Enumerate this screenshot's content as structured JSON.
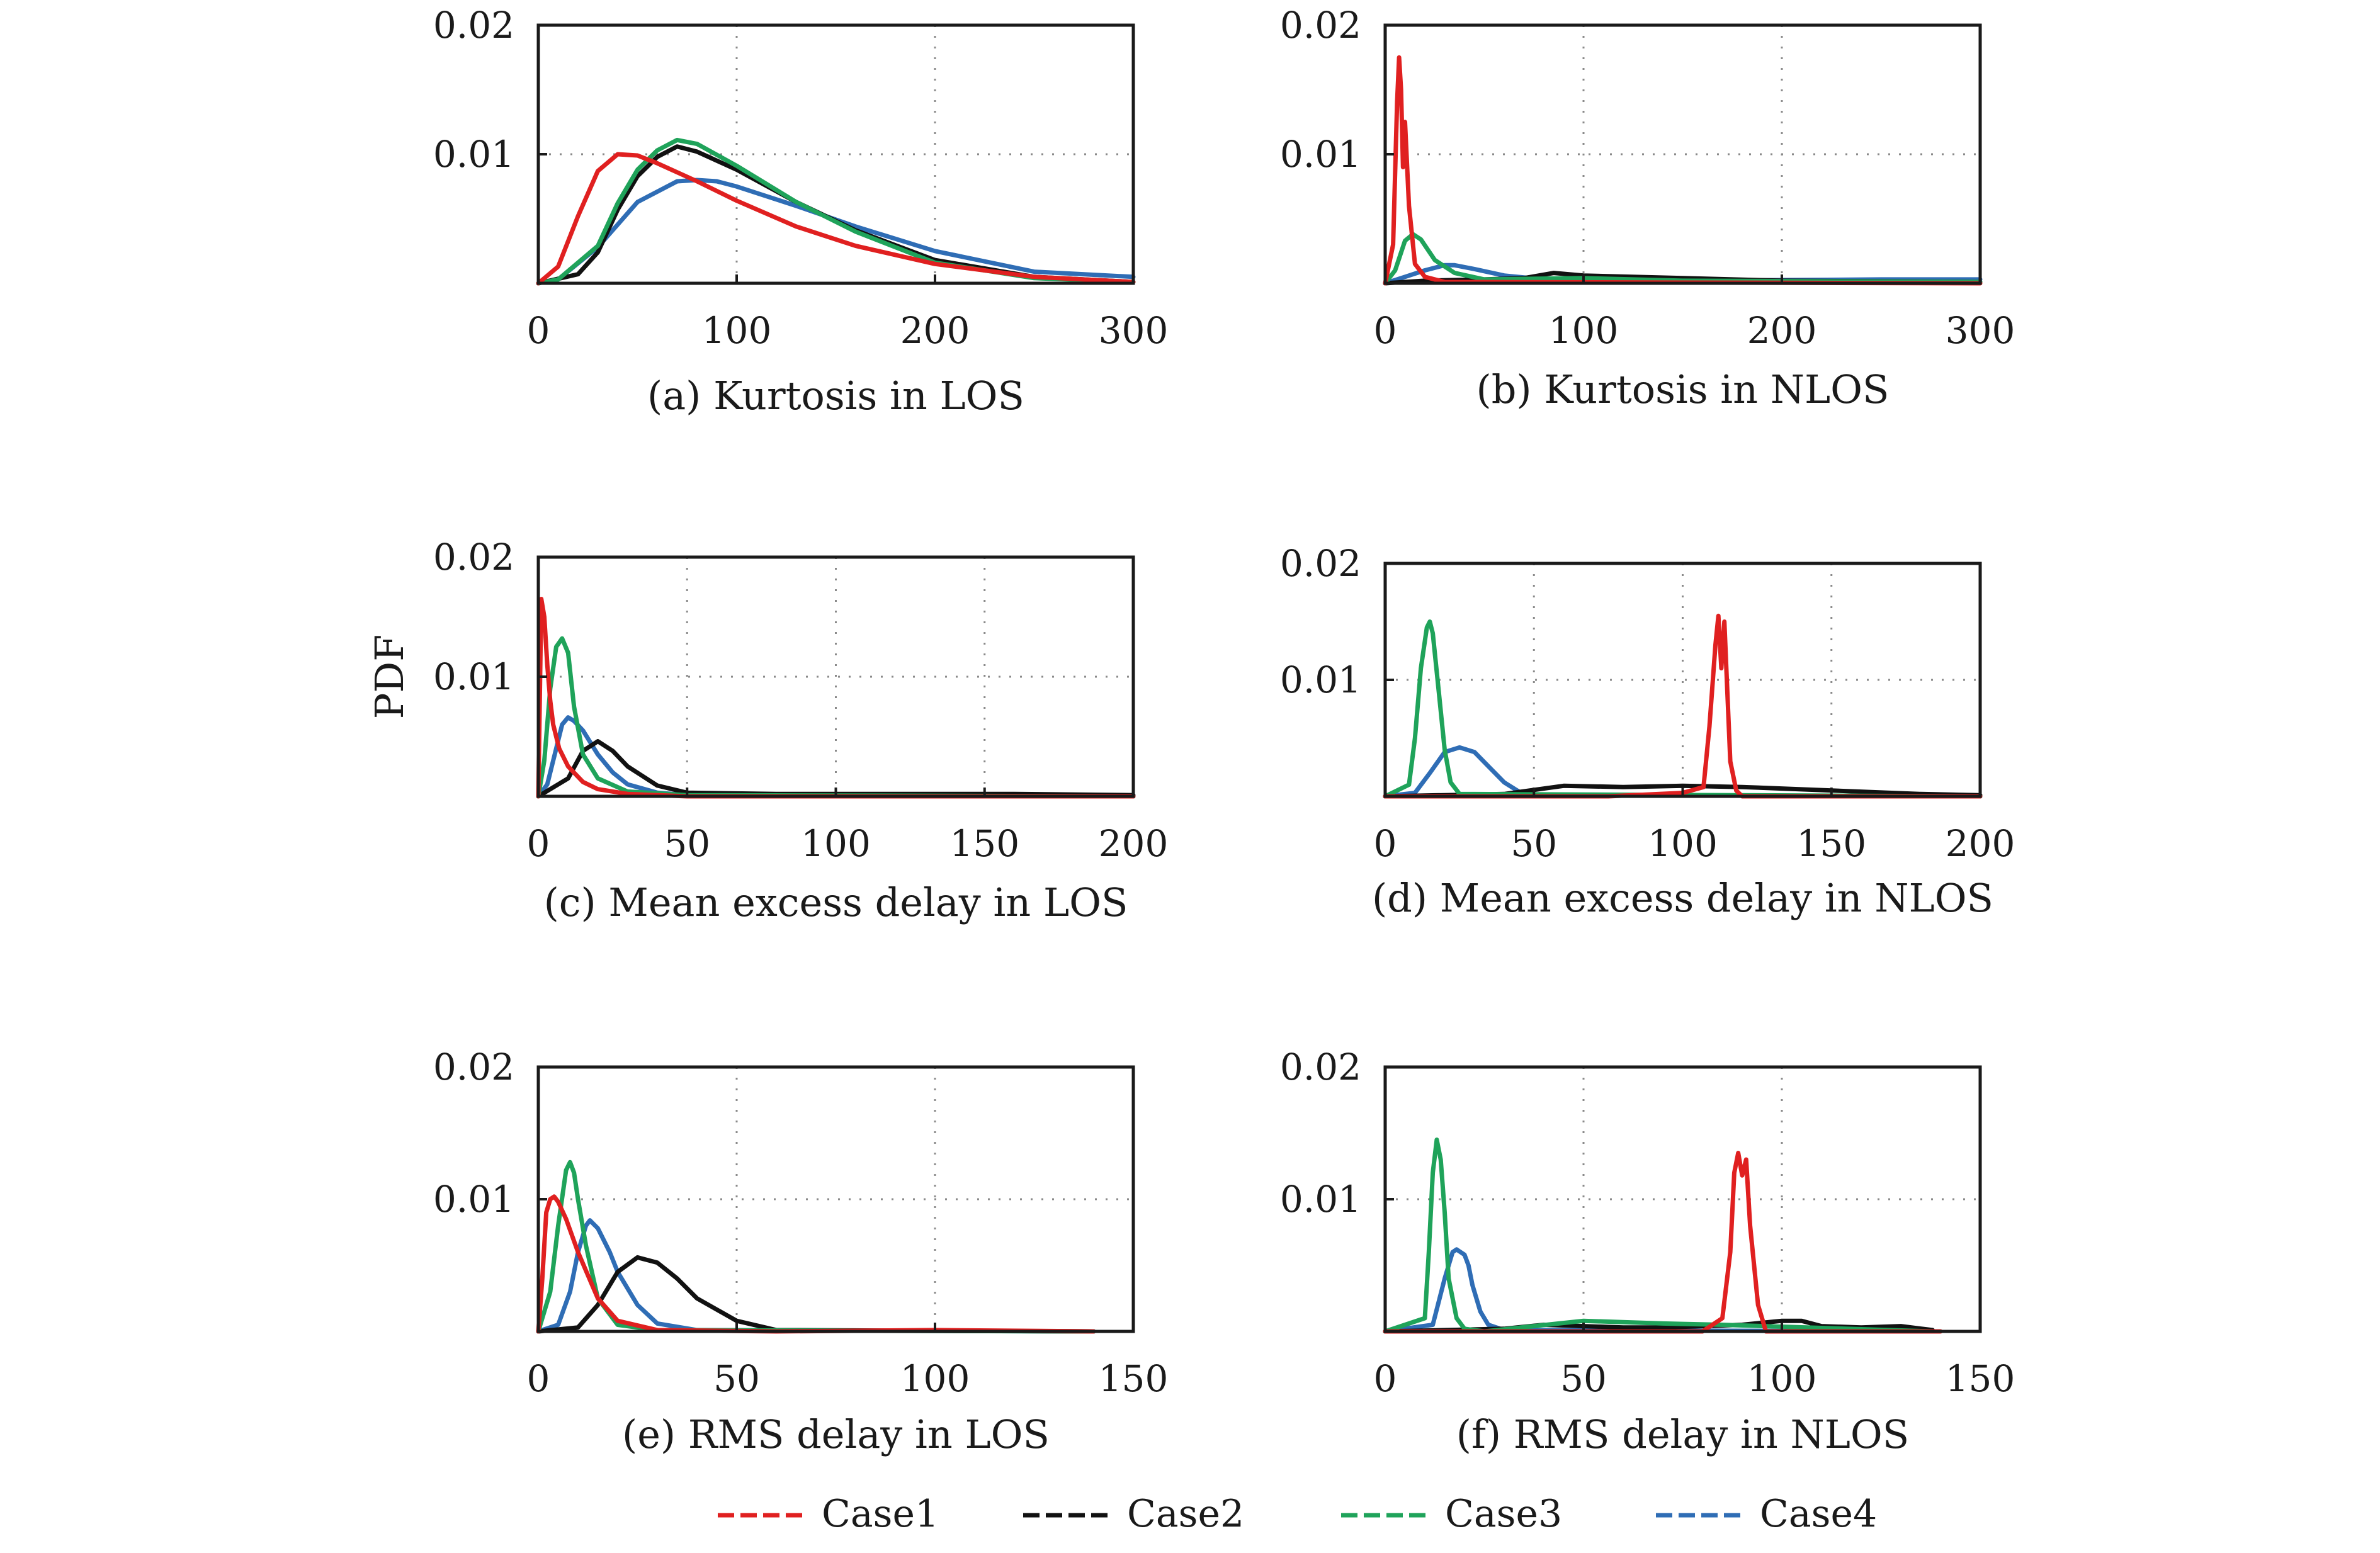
{
  "figure": {
    "ylabel": "PDF",
    "legend": [
      {
        "name": "Case1",
        "color": "#e02020"
      },
      {
        "name": "Case2",
        "color": "#111111"
      },
      {
        "name": "Case3",
        "color": "#1fa35a"
      },
      {
        "name": "Case4",
        "color": "#2f6db5"
      }
    ]
  },
  "chart_data": [
    {
      "type": "line",
      "title": "(a) Kurtosis in LOS",
      "xlim": [
        0,
        300
      ],
      "ylim": [
        0,
        0.02
      ],
      "xticks": [
        0,
        100,
        200,
        300
      ],
      "yticks": [
        0.01,
        0.02
      ],
      "grid": "dotted",
      "series": [
        {
          "name": "Case1",
          "x": [
            0,
            10,
            20,
            30,
            40,
            50,
            60,
            80,
            100,
            130,
            160,
            200,
            250,
            300
          ],
          "y": [
            0,
            0.0013,
            0.0052,
            0.0087,
            0.01,
            0.0099,
            0.0093,
            0.0079,
            0.0064,
            0.0044,
            0.0029,
            0.0015,
            0.0005,
            0.0001
          ]
        },
        {
          "name": "Case2",
          "x": [
            0,
            20,
            30,
            40,
            50,
            60,
            70,
            80,
            100,
            130,
            160,
            200,
            250,
            300
          ],
          "y": [
            0,
            0.0007,
            0.0024,
            0.0057,
            0.0083,
            0.0098,
            0.0106,
            0.0102,
            0.0088,
            0.0063,
            0.0041,
            0.0018,
            0.0005,
            0.0001
          ]
        },
        {
          "name": "Case3",
          "x": [
            0,
            10,
            30,
            40,
            50,
            60,
            70,
            80,
            100,
            130,
            160,
            200,
            250,
            300
          ],
          "y": [
            0,
            0.0003,
            0.0029,
            0.0062,
            0.0088,
            0.0103,
            0.0111,
            0.0108,
            0.0091,
            0.0063,
            0.004,
            0.0016,
            0.0004,
            0.0001
          ]
        },
        {
          "name": "Case4",
          "x": [
            0,
            10,
            30,
            50,
            70,
            80,
            90,
            100,
            130,
            160,
            200,
            250,
            300
          ],
          "y": [
            0,
            0.0003,
            0.0028,
            0.0063,
            0.0079,
            0.008,
            0.0079,
            0.0075,
            0.006,
            0.0044,
            0.0025,
            0.0009,
            0.0005
          ]
        }
      ]
    },
    {
      "type": "line",
      "title": "(b) Kurtosis in NLOS",
      "xlim": [
        0,
        300
      ],
      "ylim": [
        0,
        0.02
      ],
      "xticks": [
        0,
        100,
        200,
        300
      ],
      "yticks": [
        0.01,
        0.02
      ],
      "grid": "dotted",
      "series": [
        {
          "name": "Case1",
          "x": [
            0,
            4,
            6,
            7,
            8,
            9,
            10,
            12,
            15,
            20,
            30,
            300
          ],
          "y": [
            0,
            0.003,
            0.014,
            0.0175,
            0.015,
            0.009,
            0.0125,
            0.006,
            0.0015,
            0.0005,
            0.0001,
            0
          ]
        },
        {
          "name": "Case2",
          "x": [
            0,
            20,
            50,
            70,
            85,
            100,
            150,
            200,
            300
          ],
          "y": [
            0,
            0.0002,
            0.0003,
            0.0004,
            0.0008,
            0.0006,
            0.0004,
            0.0002,
            0.0001
          ]
        },
        {
          "name": "Case3",
          "x": [
            0,
            5,
            10,
            14,
            18,
            25,
            35,
            50,
            100,
            150,
            300
          ],
          "y": [
            0,
            0.001,
            0.0033,
            0.0038,
            0.0034,
            0.0018,
            0.0008,
            0.0003,
            0.0004,
            0.0002,
            0.0001
          ]
        },
        {
          "name": "Case4",
          "x": [
            0,
            10,
            20,
            30,
            35,
            45,
            60,
            80,
            150,
            250,
            300
          ],
          "y": [
            0,
            0.0005,
            0.001,
            0.0014,
            0.0014,
            0.0011,
            0.0006,
            0.0003,
            0.0002,
            0.0003,
            0.0003
          ]
        }
      ]
    },
    {
      "type": "line",
      "title": "(c) Mean excess delay in LOS",
      "xlim": [
        0,
        200
      ],
      "ylim": [
        0,
        0.02
      ],
      "xticks": [
        0,
        50,
        100,
        150,
        200
      ],
      "yticks": [
        0.01,
        0.02
      ],
      "grid": "dotted",
      "series": [
        {
          "name": "Case1",
          "x": [
            0,
            1,
            2,
            3,
            4,
            5,
            7,
            10,
            15,
            20,
            30,
            50,
            200
          ],
          "y": [
            0,
            0.0165,
            0.015,
            0.011,
            0.008,
            0.006,
            0.004,
            0.0025,
            0.0012,
            0.0006,
            0.0002,
            0,
            0
          ]
        },
        {
          "name": "Case2",
          "x": [
            0,
            10,
            15,
            20,
            25,
            30,
            40,
            50,
            80,
            120,
            160,
            200
          ],
          "y": [
            0,
            0.0015,
            0.0038,
            0.0046,
            0.0038,
            0.0025,
            0.0009,
            0.0003,
            0.0002,
            0.0002,
            0.0002,
            0.0001
          ]
        },
        {
          "name": "Case3",
          "x": [
            0,
            2,
            4,
            6,
            8,
            10,
            12,
            15,
            20,
            30,
            50,
            200
          ],
          "y": [
            0,
            0.003,
            0.009,
            0.0125,
            0.0132,
            0.012,
            0.0075,
            0.0035,
            0.0015,
            0.0004,
            0.0001,
            0
          ]
        },
        {
          "name": "Case4",
          "x": [
            0,
            3,
            6,
            8,
            10,
            12,
            15,
            20,
            25,
            30,
            40,
            50,
            200
          ],
          "y": [
            0,
            0.001,
            0.004,
            0.006,
            0.0066,
            0.0063,
            0.0055,
            0.0035,
            0.002,
            0.001,
            0.0003,
            0.0001,
            0
          ]
        }
      ]
    },
    {
      "type": "line",
      "title": "(d) Mean excess delay in NLOS",
      "xlim": [
        0,
        200
      ],
      "ylim": [
        0,
        0.02
      ],
      "xticks": [
        0,
        50,
        100,
        150,
        200
      ],
      "yticks": [
        0.01,
        0.02
      ],
      "grid": "dotted",
      "series": [
        {
          "name": "Case1",
          "x": [
            0,
            75,
            100,
            107,
            109,
            111,
            112,
            113,
            114,
            115,
            116,
            118,
            120,
            200
          ],
          "y": [
            0,
            0,
            0.0003,
            0.0008,
            0.006,
            0.013,
            0.0155,
            0.011,
            0.015,
            0.009,
            0.003,
            0.0005,
            0,
            0
          ]
        },
        {
          "name": "Case2",
          "x": [
            0,
            40,
            60,
            80,
            100,
            120,
            140,
            160,
            180,
            200
          ],
          "y": [
            0,
            0.0002,
            0.0009,
            0.0008,
            0.0009,
            0.0008,
            0.0006,
            0.0004,
            0.0002,
            0.0001
          ]
        },
        {
          "name": "Case3",
          "x": [
            0,
            8,
            10,
            12,
            14,
            15,
            16,
            18,
            20,
            22,
            25,
            200
          ],
          "y": [
            0,
            0.001,
            0.005,
            0.011,
            0.0145,
            0.015,
            0.014,
            0.009,
            0.004,
            0.0012,
            0.0002,
            0
          ]
        },
        {
          "name": "Case4",
          "x": [
            0,
            10,
            15,
            20,
            25,
            30,
            35,
            40,
            45,
            50,
            200
          ],
          "y": [
            0,
            0.0003,
            0.002,
            0.0038,
            0.0042,
            0.0038,
            0.0025,
            0.0012,
            0.0004,
            0.0001,
            0
          ]
        }
      ]
    },
    {
      "type": "line",
      "title": "(e) RMS delay in LOS",
      "xlim": [
        0,
        150
      ],
      "ylim": [
        0,
        0.02
      ],
      "xticks": [
        0,
        50,
        100,
        150
      ],
      "yticks": [
        0.01,
        0.02
      ],
      "grid": "dotted",
      "series": [
        {
          "name": "Case1",
          "x": [
            0,
            1,
            2,
            3,
            4,
            5,
            7,
            10,
            15,
            20,
            30,
            60,
            100,
            140
          ],
          "y": [
            0,
            0.004,
            0.009,
            0.01,
            0.0102,
            0.0098,
            0.0085,
            0.006,
            0.0025,
            0.0008,
            0.0001,
            0,
            0.0001,
            0
          ]
        },
        {
          "name": "Case2",
          "x": [
            0,
            10,
            15,
            20,
            25,
            30,
            35,
            40,
            50,
            60,
            140
          ],
          "y": [
            0,
            0.0003,
            0.002,
            0.0045,
            0.0056,
            0.0052,
            0.004,
            0.0025,
            0.0008,
            0.0001,
            0
          ]
        },
        {
          "name": "Case3",
          "x": [
            0,
            3,
            5,
            7,
            8,
            9,
            10,
            12,
            15,
            20,
            30,
            140
          ],
          "y": [
            0,
            0.003,
            0.008,
            0.0122,
            0.0128,
            0.012,
            0.01,
            0.0065,
            0.0025,
            0.0005,
            0.0001,
            0
          ]
        },
        {
          "name": "Case4",
          "x": [
            0,
            5,
            8,
            10,
            12,
            13,
            15,
            18,
            20,
            25,
            30,
            40,
            140
          ],
          "y": [
            0,
            0.0005,
            0.003,
            0.006,
            0.008,
            0.0084,
            0.0078,
            0.006,
            0.0045,
            0.002,
            0.0006,
            0.0001,
            0
          ]
        }
      ]
    },
    {
      "type": "line",
      "title": "(f) RMS delay in NLOS",
      "xlim": [
        0,
        150
      ],
      "ylim": [
        0,
        0.02
      ],
      "xticks": [
        0,
        50,
        100,
        150
      ],
      "yticks": [
        0.01,
        0.02
      ],
      "grid": "dotted",
      "series": [
        {
          "name": "Case1",
          "x": [
            0,
            80,
            85,
            87,
            88,
            89,
            90,
            91,
            92,
            94,
            96,
            140
          ],
          "y": [
            0,
            0,
            0.001,
            0.006,
            0.012,
            0.0135,
            0.0118,
            0.013,
            0.008,
            0.002,
            0,
            0
          ]
        },
        {
          "name": "Case2",
          "x": [
            0,
            30,
            40,
            50,
            60,
            70,
            80,
            90,
            100,
            105,
            110,
            120,
            130,
            138
          ],
          "y": [
            0,
            0.0002,
            0.0005,
            0.0004,
            0.0003,
            0.0003,
            0.0004,
            0.0005,
            0.0008,
            0.0008,
            0.0004,
            0.0003,
            0.0004,
            0.0001
          ]
        },
        {
          "name": "Case3",
          "x": [
            0,
            10,
            11,
            12,
            13,
            14,
            15,
            16,
            18,
            20,
            25,
            50,
            70,
            85,
            138
          ],
          "y": [
            0,
            0.001,
            0.006,
            0.012,
            0.0145,
            0.013,
            0.009,
            0.004,
            0.001,
            0.0002,
            0,
            0.0008,
            0.0006,
            0.0005,
            0
          ]
        },
        {
          "name": "Case4",
          "x": [
            0,
            12,
            15,
            17,
            18,
            19,
            20,
            21,
            22,
            24,
            26,
            30,
            138
          ],
          "y": [
            0,
            0.0005,
            0.004,
            0.006,
            0.0062,
            0.006,
            0.0058,
            0.005,
            0.0035,
            0.0015,
            0.0005,
            0.0001,
            0
          ]
        }
      ]
    }
  ]
}
